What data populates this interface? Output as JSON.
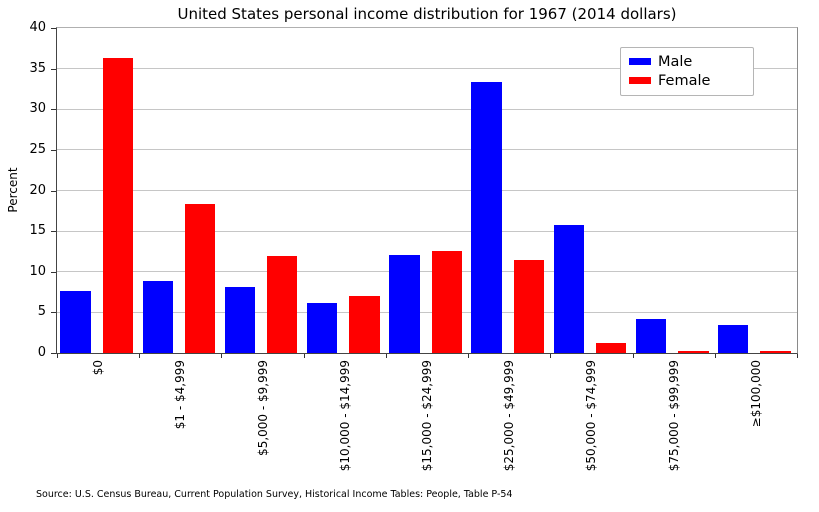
{
  "title": "United States personal income distribution for 1967 (2014 dollars)",
  "ylabel": "Percent",
  "source_note": "Source: U.S. Census Bureau, Current Population Survey, Historical Income Tables: People, Table P-54",
  "colors": {
    "male": "#0000ff",
    "female": "#ff0000",
    "grid": "#c6c6c6"
  },
  "chart_data": {
    "type": "bar",
    "title": "United States personal income distribution for 1967 (2014 dollars)",
    "xlabel": "",
    "ylabel": "Percent",
    "ylim": [
      0,
      40
    ],
    "ytick_step": 5,
    "yticks": [
      0,
      5,
      10,
      15,
      20,
      25,
      30,
      35,
      40
    ],
    "grid": true,
    "legend_position": "upper right",
    "categories": [
      "$0",
      "$1 - $4,999",
      "$5,000 - $9,999",
      "$10,000 - $14,999",
      "$15,000 - $24,999",
      "$25,000 - $49,999",
      "$50,000 - $74,999",
      "$75,000 - $99,999",
      "≥$100,000"
    ],
    "series": [
      {
        "name": "Male",
        "color": "#0000ff",
        "values": [
          7.6,
          8.9,
          8.1,
          6.2,
          12.1,
          33.4,
          15.7,
          4.2,
          3.5
        ]
      },
      {
        "name": "Female",
        "color": "#ff0000",
        "values": [
          36.3,
          18.3,
          12.0,
          7.0,
          12.5,
          11.5,
          1.2,
          0.3,
          0.3
        ]
      }
    ]
  }
}
